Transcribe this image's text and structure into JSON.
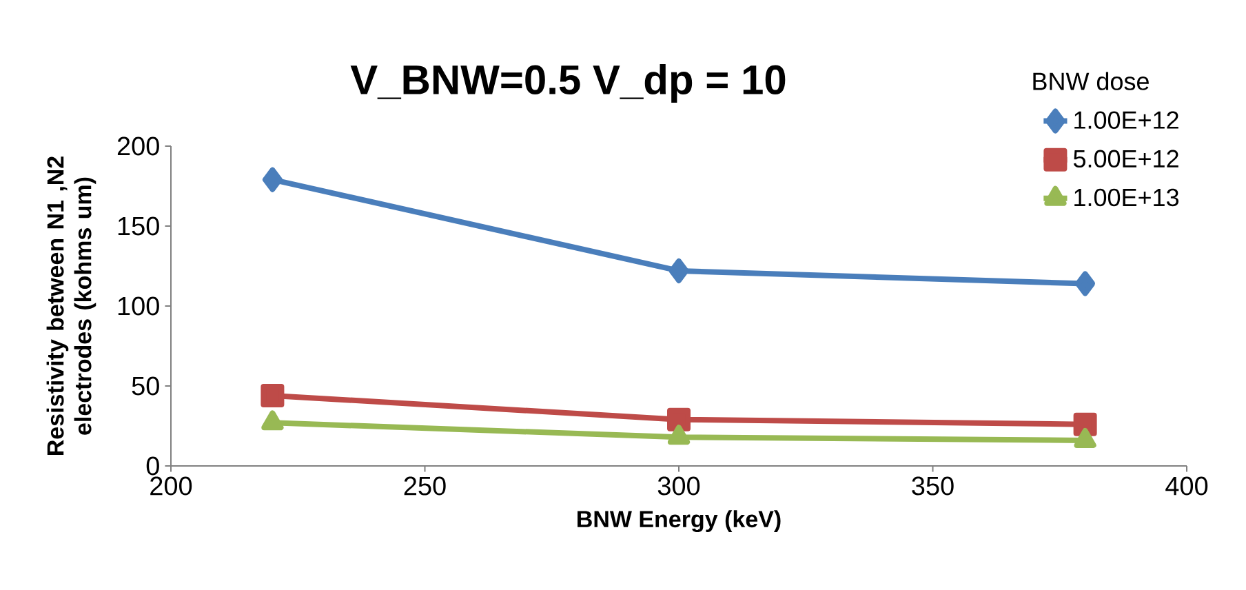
{
  "chart_data": {
    "type": "line",
    "title": "V_BNW=0.5 V_dp = 10",
    "xlabel": "BNW Energy (keV)",
    "ylabel": "Resistivity between  N1 ,N2 electrodes (kohms um)",
    "legend_title": "BNW dose",
    "x": [
      220,
      300,
      380
    ],
    "series": [
      {
        "name": "1.00E+12",
        "color": "#4a7ebb",
        "marker": "diamond",
        "values": [
          179,
          122,
          114
        ]
      },
      {
        "name": "5.00E+12",
        "color": "#be4b48",
        "marker": "square",
        "values": [
          44,
          29,
          26
        ]
      },
      {
        "name": "1.00E+13",
        "color": "#98b954",
        "marker": "triangle",
        "values": [
          27,
          18,
          16
        ]
      }
    ],
    "xlim": [
      200,
      400
    ],
    "xticks": [
      200,
      250,
      300,
      350,
      400
    ],
    "ylim": [
      0,
      200
    ],
    "yticks": [
      0,
      50,
      100,
      150,
      200
    ],
    "grid": false,
    "legend": "top right",
    "line_style": "solid"
  }
}
